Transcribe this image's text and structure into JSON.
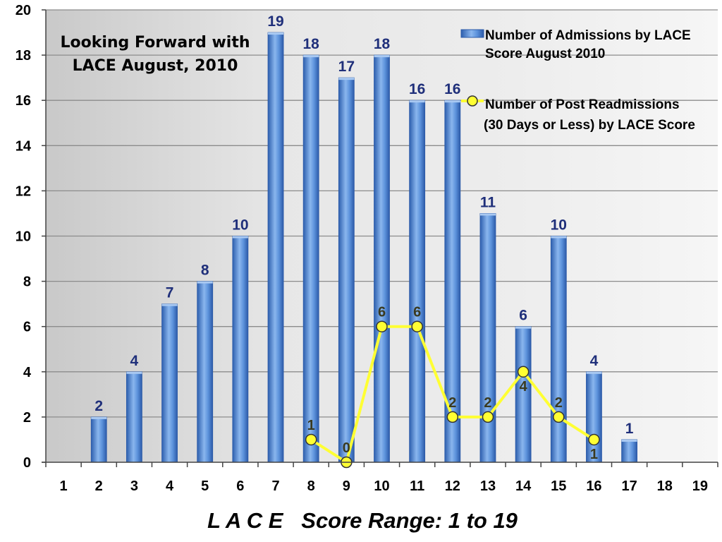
{
  "chart_data": {
    "type": "bar",
    "title": "Looking Forward with LACE August, 2010",
    "title_lines": [
      "Looking Forward with",
      "LACE August, 2010"
    ],
    "xlabel": "L A C E   Score Range: 1 to 19",
    "ylabel": "",
    "ylim": [
      0,
      20
    ],
    "yticks": [
      "0",
      "2",
      "4",
      "6",
      "8",
      "10",
      "12",
      "14",
      "16",
      "18",
      "20"
    ],
    "grid": true,
    "legend_position": "top-right",
    "categories": [
      "1",
      "2",
      "3",
      "4",
      "5",
      "6",
      "7",
      "8",
      "9",
      "10",
      "11",
      "12",
      "13",
      "14",
      "15",
      "16",
      "17",
      "18",
      "19"
    ],
    "series": [
      {
        "name": "Number of Admissions by LACE Score August 2010",
        "legend_lines": [
          "Number of Admissions by LACE",
          "Score August 2010"
        ],
        "kind": "bar",
        "color": "#4f86d6",
        "values": [
          null,
          2,
          4,
          7,
          8,
          10,
          19,
          18,
          17,
          18,
          16,
          16,
          11,
          6,
          10,
          4,
          1,
          null,
          null
        ],
        "labels": [
          "",
          "2",
          "4",
          "7",
          "8",
          "10",
          "19",
          "18",
          "17",
          "18",
          "16",
          "16",
          "11",
          "6",
          "10",
          "4",
          "1",
          "",
          ""
        ]
      },
      {
        "name": "Number of Post Readmissions (30 Days or Less) by LACE Score",
        "legend_lines": [
          "Number of Post Readmissions",
          "(30 Days or Less) by LACE Score"
        ],
        "kind": "line",
        "color": "#ffff33",
        "values": [
          null,
          null,
          null,
          null,
          null,
          null,
          null,
          1,
          0,
          6,
          6,
          2,
          2,
          4,
          2,
          1,
          null,
          null,
          null
        ],
        "labels": [
          "",
          "",
          "",
          "",
          "",
          "",
          "",
          "1",
          "0",
          "6",
          "6",
          "2",
          "2",
          "4",
          "2",
          "1",
          "",
          "",
          ""
        ]
      }
    ]
  }
}
